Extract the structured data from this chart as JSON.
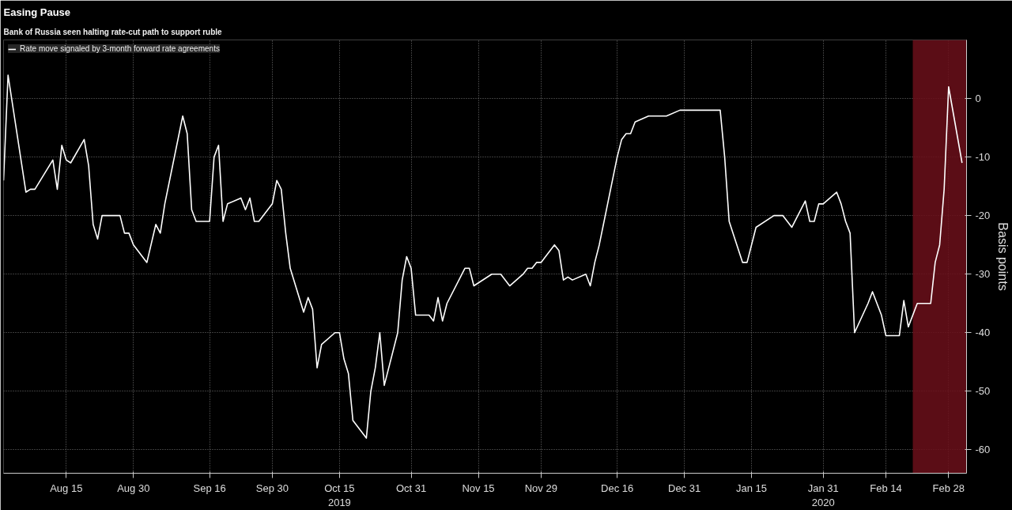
{
  "chart_data": {
    "type": "line",
    "title": "Easing Pause",
    "subtitle": "Bank of Russia seen halting rate-cut path to support ruble",
    "ylabel": "Basis points",
    "x": [
      "2019-08-01",
      "2019-08-02",
      "2019-08-05",
      "2019-08-06",
      "2019-08-07",
      "2019-08-08",
      "2019-08-12",
      "2019-08-13",
      "2019-08-14",
      "2019-08-15",
      "2019-08-16",
      "2019-08-19",
      "2019-08-20",
      "2019-08-21",
      "2019-08-22",
      "2019-08-23",
      "2019-08-27",
      "2019-08-28",
      "2019-08-29",
      "2019-08-30",
      "2019-09-02",
      "2019-09-04",
      "2019-09-05",
      "2019-09-06",
      "2019-09-10",
      "2019-09-11",
      "2019-09-12",
      "2019-09-13",
      "2019-09-16",
      "2019-09-17",
      "2019-09-18",
      "2019-09-19",
      "2019-09-20",
      "2019-09-23",
      "2019-09-24",
      "2019-09-25",
      "2019-09-26",
      "2019-09-27",
      "2019-09-30",
      "2019-10-01",
      "2019-10-02",
      "2019-10-03",
      "2019-10-04",
      "2019-10-07",
      "2019-10-08",
      "2019-10-09",
      "2019-10-10",
      "2019-10-11",
      "2019-10-14",
      "2019-10-15",
      "2019-10-16",
      "2019-10-17",
      "2019-10-18",
      "2019-10-21",
      "2019-10-22",
      "2019-10-23",
      "2019-10-24",
      "2019-10-25",
      "2019-10-28",
      "2019-10-29",
      "2019-10-30",
      "2019-10-31",
      "2019-11-01",
      "2019-11-04",
      "2019-11-05",
      "2019-11-06",
      "2019-11-07",
      "2019-11-08",
      "2019-11-12",
      "2019-11-13",
      "2019-11-14",
      "2019-11-18",
      "2019-11-20",
      "2019-11-22",
      "2019-11-25",
      "2019-11-26",
      "2019-11-27",
      "2019-11-28",
      "2019-11-29",
      "2019-12-02",
      "2019-12-03",
      "2019-12-04",
      "2019-12-05",
      "2019-12-06",
      "2019-12-09",
      "2019-12-10",
      "2019-12-11",
      "2019-12-12",
      "2019-12-16",
      "2019-12-17",
      "2019-12-18",
      "2019-12-19",
      "2019-12-20",
      "2019-12-23",
      "2019-12-27",
      "2019-12-30",
      "2020-01-08",
      "2020-01-09",
      "2020-01-10",
      "2020-01-13",
      "2020-01-14",
      "2020-01-16",
      "2020-01-20",
      "2020-01-22",
      "2020-01-24",
      "2020-01-27",
      "2020-01-28",
      "2020-01-29",
      "2020-01-30",
      "2020-01-31",
      "2020-02-03",
      "2020-02-04",
      "2020-02-05",
      "2020-02-06",
      "2020-02-07",
      "2020-02-10",
      "2020-02-11",
      "2020-02-13",
      "2020-02-14",
      "2020-02-17",
      "2020-02-18",
      "2020-02-19",
      "2020-02-21",
      "2020-02-24",
      "2020-02-25",
      "2020-02-26",
      "2020-02-27",
      "2020-02-28",
      "2020-03-02"
    ],
    "series": [
      {
        "name": "Rate move signaled by 3-month forward rate agreements",
        "color": "#ffffff",
        "values": [
          -14,
          4,
          -11,
          -16,
          -15.5,
          -15.5,
          -10.5,
          -15.5,
          -8,
          -10.5,
          -11,
          -7,
          -11.5,
          -21.5,
          -24,
          -20,
          -20,
          -23,
          -23,
          -25,
          -28,
          -21.5,
          -23,
          -18,
          -3,
          -6,
          -19,
          -21,
          -21,
          -10,
          -8,
          -21,
          -18,
          -17,
          -19,
          -17,
          -21,
          -21,
          -18,
          -14,
          -15.5,
          -23,
          -29,
          -36.5,
          -34,
          -36,
          -46,
          -42,
          -40,
          -40,
          -44.5,
          -47,
          -55,
          -58,
          -50,
          -46,
          -40,
          -49,
          -40,
          -31,
          -27,
          -29,
          -37,
          -37,
          -38,
          -34,
          -38,
          -35,
          -29,
          -29,
          -32,
          -30,
          -30,
          -32,
          -30,
          -29,
          -29,
          -28,
          -28,
          -25,
          -26,
          -31,
          -30.5,
          -31,
          -30,
          -32,
          -28,
          -25,
          -10,
          -7,
          -6,
          -6,
          -4,
          -3,
          -3,
          -2,
          -2,
          -10,
          -21,
          -28,
          -28,
          -22,
          -20,
          -20,
          -22,
          -17.5,
          -21,
          -21,
          -18,
          -18,
          -16,
          -18,
          -21,
          -23,
          -40,
          -35,
          -33,
          -37,
          -40.5,
          -40.5,
          -34.5,
          -39,
          -35,
          -35,
          -28,
          -25,
          -15.5,
          2,
          -11
        ]
      }
    ],
    "xlim": [
      "2019-08-01",
      "2020-03-03"
    ],
    "ylim": [
      -64,
      10
    ],
    "xticks": [
      {
        "value": "2019-08-15",
        "label": "Aug 15"
      },
      {
        "value": "2019-08-30",
        "label": "Aug 30"
      },
      {
        "value": "2019-09-16",
        "label": "Sep 16"
      },
      {
        "value": "2019-09-30",
        "label": "Sep 30"
      },
      {
        "value": "2019-10-15",
        "label": "Oct 15\n2019"
      },
      {
        "value": "2019-10-31",
        "label": "Oct 31"
      },
      {
        "value": "2019-11-15",
        "label": "Nov 15"
      },
      {
        "value": "2019-11-29",
        "label": "Nov 29"
      },
      {
        "value": "2019-12-16",
        "label": "Dec 16"
      },
      {
        "value": "2019-12-31",
        "label": "Dec 31"
      },
      {
        "value": "2020-01-15",
        "label": "Jan 15"
      },
      {
        "value": "2020-01-31",
        "label": "Jan 31\n2020"
      },
      {
        "value": "2020-02-14",
        "label": "Feb 14"
      },
      {
        "value": "2020-02-28",
        "label": "Feb 28"
      }
    ],
    "yticks": [
      0,
      -10,
      -20,
      -30,
      -40,
      -50,
      -60
    ],
    "bands": [
      {
        "axis": "x",
        "from": "2020-02-20",
        "to": "2020-03-03",
        "color": "#6b0f1a"
      }
    ],
    "grid": true,
    "legend": "top left"
  }
}
